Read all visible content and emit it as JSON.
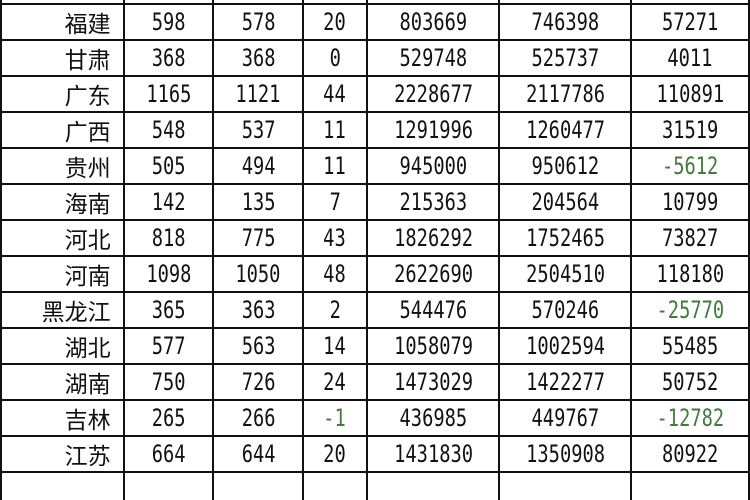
{
  "table": {
    "rows": [
      {
        "name": "福建",
        "c1": "598",
        "c2": "578",
        "c3": "20",
        "c4": "803669",
        "c5": "746398",
        "c6": "57271"
      },
      {
        "name": "甘肃",
        "c1": "368",
        "c2": "368",
        "c3": "0",
        "c4": "529748",
        "c5": "525737",
        "c6": "4011"
      },
      {
        "name": "广东",
        "c1": "1165",
        "c2": "1121",
        "c3": "44",
        "c4": "2228677",
        "c5": "2117786",
        "c6": "110891"
      },
      {
        "name": "广西",
        "c1": "548",
        "c2": "537",
        "c3": "11",
        "c4": "1291996",
        "c5": "1260477",
        "c6": "31519"
      },
      {
        "name": "贵州",
        "c1": "505",
        "c2": "494",
        "c3": "11",
        "c4": "945000",
        "c5": "950612",
        "c6": "-5612"
      },
      {
        "name": "海南",
        "c1": "142",
        "c2": "135",
        "c3": "7",
        "c4": "215363",
        "c5": "204564",
        "c6": "10799"
      },
      {
        "name": "河北",
        "c1": "818",
        "c2": "775",
        "c3": "43",
        "c4": "1826292",
        "c5": "1752465",
        "c6": "73827"
      },
      {
        "name": "河南",
        "c1": "1098",
        "c2": "1050",
        "c3": "48",
        "c4": "2622690",
        "c5": "2504510",
        "c6": "118180"
      },
      {
        "name": "黑龙江",
        "c1": "365",
        "c2": "363",
        "c3": "2",
        "c4": "544476",
        "c5": "570246",
        "c6": "-25770"
      },
      {
        "name": "湖北",
        "c1": "577",
        "c2": "563",
        "c3": "14",
        "c4": "1058079",
        "c5": "1002594",
        "c6": "55485"
      },
      {
        "name": "湖南",
        "c1": "750",
        "c2": "726",
        "c3": "24",
        "c4": "1473029",
        "c5": "1422277",
        "c6": "50752"
      },
      {
        "name": "吉林",
        "c1": "265",
        "c2": "266",
        "c3": "-1",
        "c4": "436985",
        "c5": "449767",
        "c6": "-12782"
      },
      {
        "name": "江苏",
        "c1": "664",
        "c2": "644",
        "c3": "20",
        "c4": "1431830",
        "c5": "1350908",
        "c6": "80922"
      }
    ],
    "negative_color": "#3e7d3a"
  }
}
